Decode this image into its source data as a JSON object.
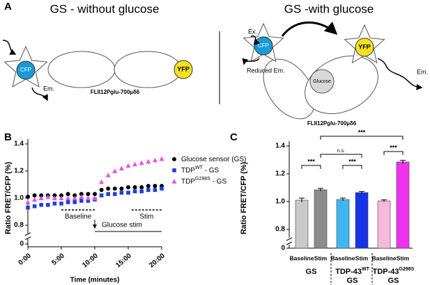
{
  "panel_a": {
    "label": "A",
    "left": {
      "title": "GS - without glucose",
      "donor": "CFP",
      "acceptor": "YFP",
      "emission": "Em.",
      "construct": "FLII12Pglu-700µδ6"
    },
    "right": {
      "title": "GS -with glucose",
      "excitation": "Ex.",
      "donor": "CFP",
      "acceptor": "YFP",
      "reduced_emission": "Reduced Em.",
      "ligand": "Glucose",
      "emission": "Em.",
      "construct": "FLII12Pglu-700µδ6"
    }
  },
  "chart_data": [
    {
      "type": "scatter",
      "panel_label": "B",
      "x_label": "Time (minutes)",
      "y_label": "Ratio FRET/CFP (%)",
      "x": [
        0,
        1,
        2,
        3,
        4,
        5,
        6,
        7,
        8,
        9,
        10,
        11,
        12,
        13,
        14,
        15,
        16,
        17,
        18,
        19,
        20
      ],
      "xlim": [
        0,
        20
      ],
      "xticks": [
        {
          "value": 0,
          "label": "0:00"
        },
        {
          "value": 5,
          "label": "5:00"
        },
        {
          "value": 10,
          "label": "10:00"
        },
        {
          "value": 15,
          "label": "15:00"
        },
        {
          "value": 20,
          "label": "20:00"
        }
      ],
      "ylim": [
        0.75,
        1.4
      ],
      "axis_break": true,
      "yticks": [
        0,
        0.8,
        {
          "value": 1,
          "label": "1.0"
        },
        1.2,
        1.4
      ],
      "legend": "upper right",
      "series": [
        {
          "name": "Glucose sensor (GS)",
          "color": "#000000",
          "marker": "circle",
          "values": [
            1.01,
            1.02,
            1.02,
            1.02,
            1.02,
            1.02,
            1.03,
            1.02,
            1.03,
            1.03,
            1.03,
            1.06,
            1.07,
            1.07,
            1.07,
            1.08,
            1.08,
            1.08,
            1.09,
            1.09,
            1.09
          ]
        },
        {
          "name": "TDP",
          "name_superscript": "WT",
          "name_suffix": " - GS",
          "color": "#1f3fe0",
          "marker": "square",
          "values": [
            0.93,
            0.94,
            0.95,
            0.95,
            0.96,
            0.96,
            0.97,
            0.97,
            0.98,
            0.98,
            0.99,
            1.02,
            1.03,
            1.03,
            1.04,
            1.04,
            1.05,
            1.05,
            1.06,
            1.06,
            1.07
          ]
        },
        {
          "name": "TDP",
          "name_superscript": "G298S",
          "name_suffix": " - GS",
          "color": "#e84ee8",
          "marker": "triangle",
          "values": [
            0.97,
            0.99,
            1.0,
            1.01,
            1.0,
            1.0,
            1.0,
            1.0,
            1.01,
            1.0,
            1.0,
            1.12,
            1.17,
            1.2,
            1.22,
            1.24,
            1.25,
            1.26,
            1.27,
            1.28,
            1.29
          ]
        }
      ],
      "baseline_label": "Baseline",
      "baseline_window": [
        5,
        10
      ],
      "stim_label": "Stim",
      "stim_window": [
        15.5,
        20
      ],
      "stimulus_label": "Glucose stim",
      "stimulus_time": 10
    },
    {
      "type": "bar",
      "panel_label": "C",
      "y_label": "Ratio FRET/CFP (%)",
      "categories": [
        "Baseline",
        "Stim",
        "Baseline",
        "Stim",
        "Baseline",
        "Stim"
      ],
      "values": [
        1.01,
        1.085,
        1.015,
        1.065,
        1.005,
        1.285
      ],
      "errors": [
        0.015,
        0.01,
        0.01,
        0.008,
        0.008,
        0.012
      ],
      "colors": [
        "#c9c9c9",
        "#8c8c8c",
        "#3fb6f2",
        "#1733e8",
        "#f7b8dd",
        "#f032ee"
      ],
      "ylim": [
        0.75,
        1.4
      ],
      "axis_break": true,
      "yticks": [
        0,
        0.8,
        {
          "value": 1,
          "label": "1.0"
        },
        1.2,
        1.4
      ],
      "groups": [
        {
          "name": "GS"
        },
        {
          "name": "TDP-43",
          "name_superscript": "WT",
          "name_line2": "GS"
        },
        {
          "name": "TDP-43",
          "name_superscript": "G298S",
          "name_line2": "GS"
        }
      ],
      "comparisons": [
        {
          "from": 0,
          "to": 1,
          "label": "***"
        },
        {
          "from": 1,
          "to": 3,
          "label": "n.s."
        },
        {
          "from": 2,
          "to": 3,
          "label": "***"
        },
        {
          "from": 4,
          "to": 5,
          "label": "***"
        },
        {
          "from": 1,
          "to": 5,
          "label": "***"
        }
      ]
    }
  ]
}
